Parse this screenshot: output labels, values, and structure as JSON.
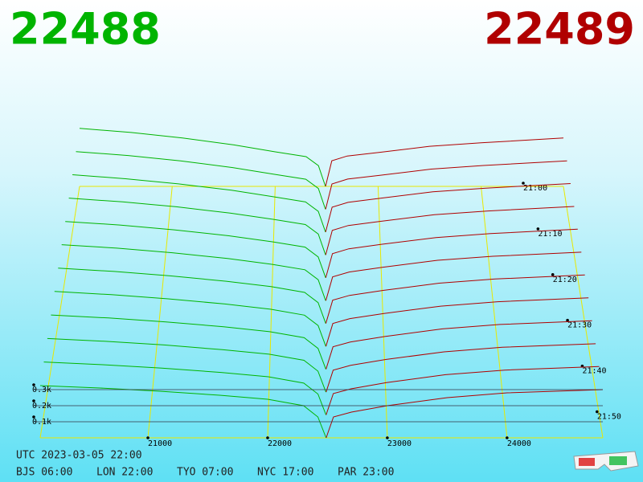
{
  "chart_data": {
    "type": "depth3d",
    "bid_title": "22488",
    "ask_title": "22489",
    "bid_color": "#00b400",
    "ask_color": "#b00000",
    "grid": true,
    "grid_color": "#e8e800",
    "xlim": [
      20100,
      24800
    ],
    "xticks": [
      21000,
      22000,
      23000,
      24000
    ],
    "zlim": [
      0,
      400
    ],
    "zticks": [
      {
        "value": 100,
        "label": "0.1k"
      },
      {
        "value": 200,
        "label": "0.2k"
      },
      {
        "value": 300,
        "label": "0.3k"
      }
    ],
    "times": [
      "21:00",
      null,
      "21:10",
      null,
      "21:20",
      null,
      "21:30",
      null,
      "21:40",
      null,
      "21:50",
      null
    ],
    "bid_prices": [
      20100,
      20600,
      21100,
      21600,
      22000,
      22300,
      22420,
      22488
    ],
    "ask_prices": [
      22489,
      22550,
      22700,
      23000,
      23500,
      24000,
      24800
    ],
    "bids": [
      [
        420,
        390,
        350,
        300,
        250,
        215,
        150,
        0
      ],
      [
        411,
        383,
        345,
        297,
        249,
        214,
        148,
        0
      ],
      [
        403,
        375,
        339,
        294,
        248,
        212,
        146,
        0
      ],
      [
        394,
        368,
        334,
        290,
        247,
        211,
        145,
        0
      ],
      [
        385,
        361,
        328,
        287,
        246,
        210,
        143,
        0
      ],
      [
        377,
        354,
        323,
        284,
        245,
        208,
        141,
        0
      ],
      [
        368,
        346,
        317,
        281,
        245,
        207,
        139,
        0
      ],
      [
        360,
        339,
        312,
        278,
        244,
        205,
        137,
        0
      ],
      [
        351,
        332,
        306,
        275,
        243,
        204,
        135,
        0
      ],
      [
        342,
        324,
        301,
        271,
        242,
        203,
        134,
        0
      ],
      [
        334,
        317,
        295,
        268,
        241,
        201,
        132,
        0
      ],
      [
        325,
        310,
        290,
        265,
        240,
        200,
        130,
        0
      ]
    ],
    "asks": [
      [
        0,
        185,
        220,
        245,
        290,
        315,
        350
      ],
      [
        0,
        180,
        215,
        241,
        286,
        312,
        345
      ],
      [
        0,
        175,
        209,
        237,
        283,
        309,
        341
      ],
      [
        0,
        170,
        204,
        233,
        279,
        305,
        336
      ],
      [
        0,
        165,
        198,
        229,
        275,
        302,
        332
      ],
      [
        0,
        160,
        193,
        225,
        272,
        299,
        327
      ],
      [
        0,
        155,
        187,
        220,
        268,
        296,
        323
      ],
      [
        0,
        150,
        182,
        216,
        264,
        293,
        318
      ],
      [
        0,
        145,
        176,
        212,
        261,
        290,
        314
      ],
      [
        0,
        140,
        171,
        208,
        257,
        286,
        309
      ],
      [
        0,
        135,
        165,
        204,
        254,
        283,
        305
      ],
      [
        0,
        130,
        160,
        200,
        250,
        280,
        300
      ]
    ],
    "footer": {
      "utc": "UTC 2023-03-05 22:00",
      "zones": [
        "BJS 06:00",
        "LON 22:00",
        "TYO 07:00",
        "NYC 17:00",
        "PAR 23:00"
      ]
    }
  }
}
